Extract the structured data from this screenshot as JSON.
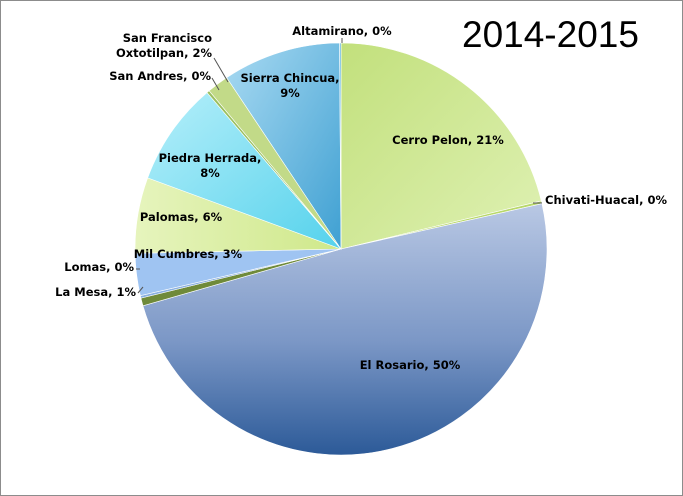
{
  "chart_data": {
    "type": "pie",
    "title": "2014-2015",
    "slices": [
      {
        "name": "Cerro Pelon",
        "value": 21,
        "label_lines": [
          "Cerro Pelon, 21%"
        ],
        "color": "#c3e383"
      },
      {
        "name": "Chivati-Huacal",
        "value": 0,
        "label_lines": [
          "Chivati-Huacal, 0%"
        ],
        "color": "#b8d86a"
      },
      {
        "name": "El Rosario",
        "value": 50,
        "label_lines": [
          "El Rosario, 50%"
        ],
        "color": "#6e8fc0"
      },
      {
        "name": "La Mesa",
        "value": 1,
        "label_lines": [
          "La Mesa, 1%"
        ],
        "color": "#6f8a3a"
      },
      {
        "name": "Lomas",
        "value": 0,
        "label_lines": [
          "Lomas, 0%"
        ],
        "color": "#8ab0e0"
      },
      {
        "name": "Mil Cumbres",
        "value": 3,
        "label_lines": [
          "Mil Cumbres, 3%"
        ],
        "color": "#9fc4f2"
      },
      {
        "name": "Palomas",
        "value": 6,
        "label_lines": [
          "Palomas, 6%"
        ],
        "color": "#d4ec96"
      },
      {
        "name": "Piedra Herrada",
        "value": 8,
        "label_lines": [
          "Piedra Herrada,",
          "8%"
        ],
        "color": "#8ee4f4"
      },
      {
        "name": "San Andres",
        "value": 0,
        "label_lines": [
          "San Andres, 0%"
        ],
        "color": "#9bc060"
      },
      {
        "name": "San Francisco Oxtotilpan",
        "value": 2,
        "label_lines": [
          "San Francisco",
          "Oxtotilpan, 2%"
        ],
        "color": "#c2da88"
      },
      {
        "name": "Sierra Chincua",
        "value": 9,
        "label_lines": [
          "Sierra Chincua,",
          "9%"
        ],
        "color": "#78c6e6"
      },
      {
        "name": "Altamirano",
        "value": 0,
        "label_lines": [
          "Altamirano, 0%"
        ],
        "color": "#5fb4dc"
      }
    ],
    "start_angle_deg": 0,
    "direction": "clockwise",
    "legend": "none",
    "data_labels": "name, percent"
  }
}
